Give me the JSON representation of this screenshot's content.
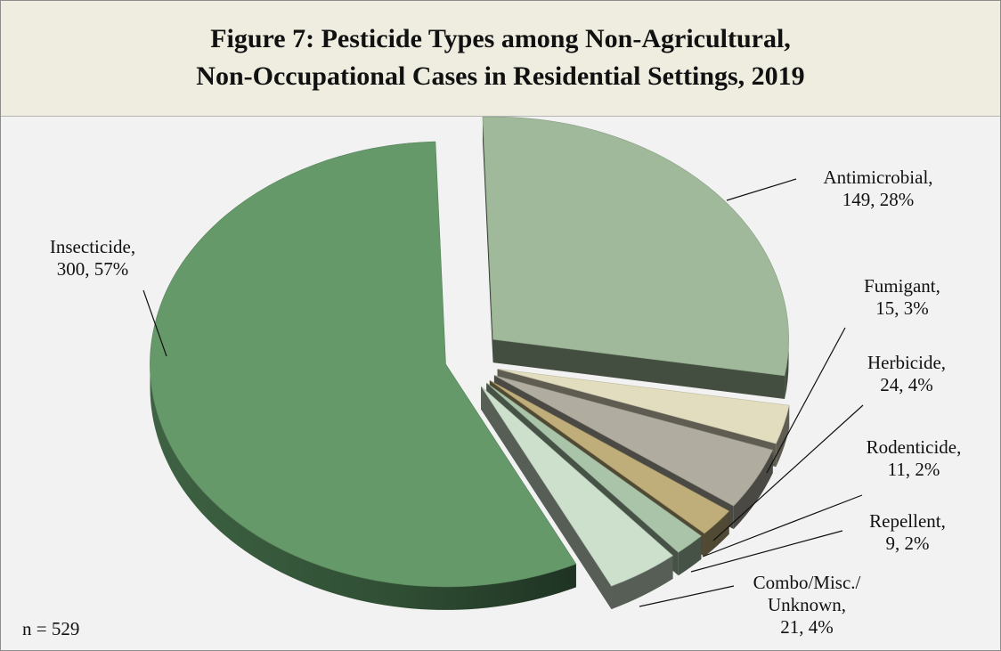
{
  "chart_data": {
    "type": "pie",
    "title_lines": [
      "Figure 7: Pesticide Types among Non-Agricultural,",
      "Non-Occupational Cases in Residential Settings, 2019"
    ],
    "note": "n = 529",
    "slices": [
      {
        "label_lines": [
          "Antimicrobial,",
          "149, 28%"
        ],
        "category": "Antimicrobial",
        "value": 149,
        "percent": 28,
        "color": "#9fb99a"
      },
      {
        "label_lines": [
          "Fumigant,",
          "15, 3%"
        ],
        "category": "Fumigant",
        "value": 15,
        "percent": 3,
        "color": "#e3ddc0"
      },
      {
        "label_lines": [
          "Herbicide,",
          "24, 4%"
        ],
        "category": "Herbicide",
        "value": 24,
        "percent": 4,
        "color": "#b0ada0"
      },
      {
        "label_lines": [
          "Rodenticide,",
          "11, 2%"
        ],
        "category": "Rodenticide",
        "value": 11,
        "percent": 2,
        "color": "#bfae79"
      },
      {
        "label_lines": [
          "Repellent,",
          "9, 2%"
        ],
        "category": "Repellent",
        "value": 9,
        "percent": 2,
        "color": "#a9c4a8"
      },
      {
        "label_lines": [
          "Combo/Misc./",
          "Unknown,",
          "21, 4%"
        ],
        "category": "Combo/Misc./Unknown",
        "value": 21,
        "percent": 4,
        "color": "#cde0cc"
      },
      {
        "label_lines": [
          "Insecticide,",
          "300, 57%"
        ],
        "category": "Insecticide",
        "value": 300,
        "percent": 57,
        "color": "#66996a"
      }
    ]
  }
}
